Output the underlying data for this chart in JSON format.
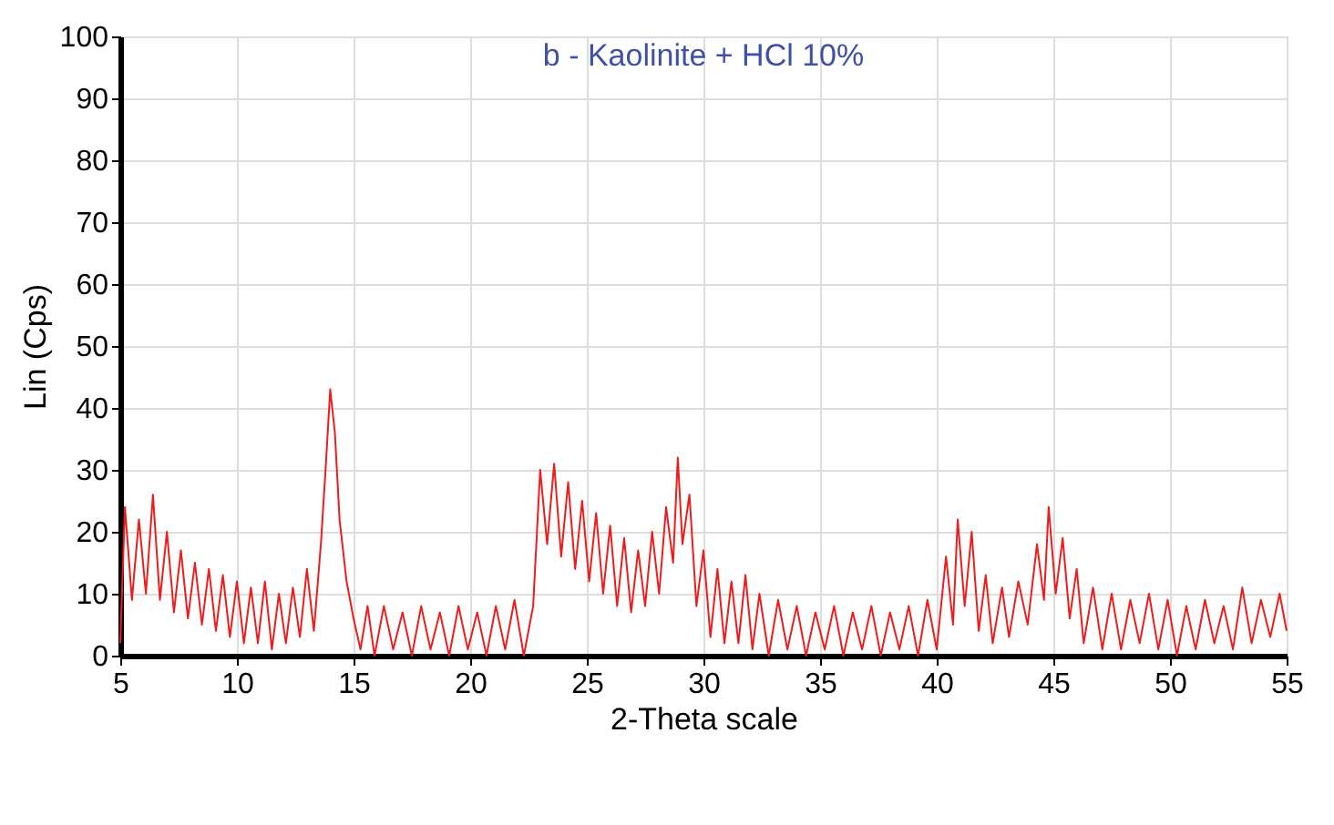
{
  "chart_data": {
    "type": "line",
    "title": "b - Kaolinite + HCl 10%",
    "xlabel": "2-Theta scale",
    "ylabel": "Lin (Cps)",
    "xlim": [
      5,
      55
    ],
    "xticks": [
      5,
      10,
      15,
      20,
      25,
      30,
      35,
      40,
      45,
      50,
      55
    ],
    "ylim": [
      0,
      100
    ],
    "yticks": [
      0,
      10,
      20,
      30,
      40,
      50,
      60,
      70,
      80,
      90,
      100
    ],
    "grid": true,
    "line_style": "solid",
    "marker": "none",
    "series": [
      {
        "color": "#ee1c1c",
        "x": [
          5.0,
          5.2,
          5.5,
          5.8,
          6.1,
          6.4,
          6.7,
          7.0,
          7.3,
          7.6,
          7.9,
          8.2,
          8.5,
          8.8,
          9.1,
          9.4,
          9.7,
          10.0,
          10.3,
          10.6,
          10.9,
          11.2,
          11.5,
          11.8,
          12.1,
          12.4,
          12.7,
          13.0,
          13.3,
          13.6,
          13.8,
          14.0,
          14.2,
          14.4,
          14.7,
          15.0,
          15.3,
          15.6,
          15.9,
          16.3,
          16.7,
          17.1,
          17.5,
          17.9,
          18.3,
          18.7,
          19.1,
          19.5,
          19.9,
          20.3,
          20.7,
          21.1,
          21.5,
          21.9,
          22.3,
          22.7,
          23.0,
          23.3,
          23.6,
          23.9,
          24.2,
          24.5,
          24.8,
          25.1,
          25.4,
          25.7,
          26.0,
          26.3,
          26.6,
          26.9,
          27.2,
          27.5,
          27.8,
          28.1,
          28.4,
          28.7,
          28.9,
          29.1,
          29.4,
          29.7,
          30.0,
          30.3,
          30.6,
          30.9,
          31.2,
          31.5,
          31.8,
          32.1,
          32.4,
          32.8,
          33.2,
          33.6,
          34.0,
          34.4,
          34.8,
          35.2,
          35.6,
          36.0,
          36.4,
          36.8,
          37.2,
          37.6,
          38.0,
          38.4,
          38.8,
          39.2,
          39.6,
          40.0,
          40.4,
          40.7,
          40.9,
          41.2,
          41.5,
          41.8,
          42.1,
          42.4,
          42.8,
          43.1,
          43.5,
          43.9,
          44.3,
          44.6,
          44.8,
          45.1,
          45.4,
          45.7,
          46.0,
          46.3,
          46.7,
          47.1,
          47.5,
          47.9,
          48.3,
          48.7,
          49.1,
          49.5,
          49.9,
          50.3,
          50.7,
          51.1,
          51.5,
          51.9,
          52.3,
          52.7,
          53.1,
          53.5,
          53.9,
          54.3,
          54.7,
          55.0
        ],
        "values": [
          2,
          24,
          9,
          22,
          10,
          26,
          9,
          20,
          7,
          17,
          6,
          15,
          5,
          14,
          4,
          13,
          3,
          12,
          2,
          11,
          2,
          12,
          1,
          10,
          2,
          11,
          3,
          14,
          4,
          18,
          30,
          43,
          36,
          22,
          12,
          6,
          1,
          8,
          0,
          8,
          1,
          7,
          0,
          8,
          1,
          7,
          0,
          8,
          1,
          7,
          0,
          8,
          1,
          9,
          0,
          8,
          30,
          18,
          31,
          16,
          28,
          14,
          25,
          12,
          23,
          10,
          21,
          8,
          19,
          7,
          17,
          8,
          20,
          10,
          24,
          15,
          32,
          18,
          26,
          8,
          17,
          3,
          14,
          2,
          12,
          2,
          13,
          1,
          10,
          0,
          9,
          1,
          8,
          0,
          7,
          1,
          8,
          0,
          7,
          1,
          8,
          0,
          7,
          1,
          8,
          0,
          9,
          1,
          16,
          5,
          22,
          8,
          20,
          4,
          13,
          2,
          11,
          3,
          12,
          5,
          18,
          9,
          24,
          10,
          19,
          6,
          14,
          2,
          11,
          1,
          10,
          1,
          9,
          2,
          10,
          1,
          9,
          0,
          8,
          1,
          9,
          2,
          8,
          1,
          11,
          2,
          9,
          3,
          10,
          4
        ]
      }
    ]
  }
}
